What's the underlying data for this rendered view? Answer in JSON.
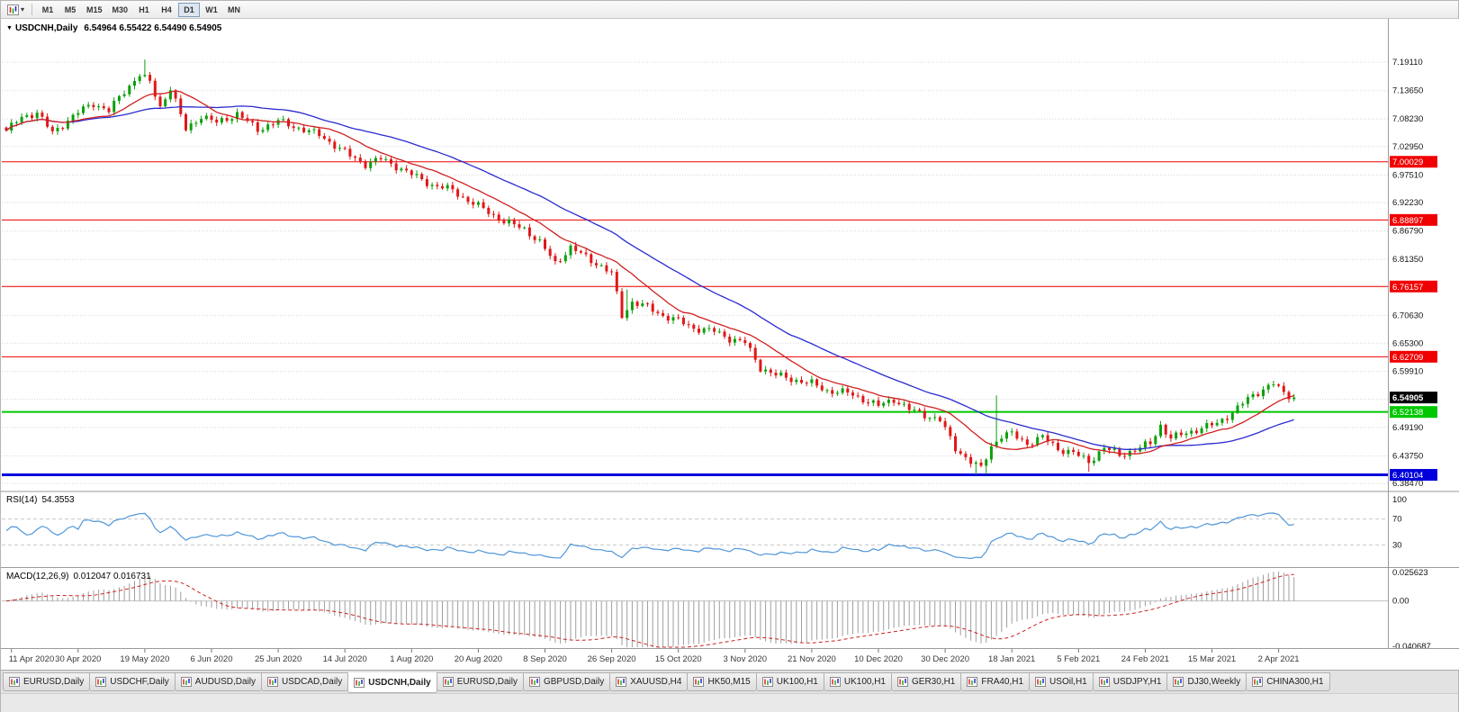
{
  "toolbar": {
    "caret_icon": "▾",
    "timeframes": [
      {
        "label": "M1",
        "active": false
      },
      {
        "label": "M5",
        "active": false
      },
      {
        "label": "M15",
        "active": false
      },
      {
        "label": "M30",
        "active": false
      },
      {
        "label": "H1",
        "active": false
      },
      {
        "label": "H4",
        "active": false
      },
      {
        "label": "D1",
        "active": true
      },
      {
        "label": "W1",
        "active": false
      },
      {
        "label": "MN",
        "active": false
      }
    ]
  },
  "chart_data": {
    "type": "candlestick",
    "symbol": "USDCNH",
    "timeframe": "Daily",
    "title": "USDCNH,Daily",
    "ohlc_label": "6.54964 6.55422 6.54490 6.54905",
    "marker": "▼",
    "bars": 252,
    "price_keypoints": [
      [
        0,
        7.06
      ],
      [
        3,
        7.085
      ],
      [
        6,
        7.095
      ],
      [
        9,
        7.055
      ],
      [
        12,
        7.08
      ],
      [
        14,
        7.095
      ],
      [
        17,
        7.112
      ],
      [
        20,
        7.098
      ],
      [
        23,
        7.135
      ],
      [
        26,
        7.168
      ],
      [
        28,
        7.152
      ],
      [
        30,
        7.105
      ],
      [
        32,
        7.142
      ],
      [
        35,
        7.062
      ],
      [
        38,
        7.088
      ],
      [
        41,
        7.075
      ],
      [
        45,
        7.092
      ],
      [
        49,
        7.062
      ],
      [
        53,
        7.078
      ],
      [
        57,
        7.065
      ],
      [
        61,
        7.052
      ],
      [
        64,
        7.032
      ],
      [
        67,
        7.012
      ],
      [
        70,
        6.996
      ],
      [
        73,
        7.006
      ],
      [
        76,
        6.992
      ],
      [
        79,
        6.976
      ],
      [
        83,
        6.956
      ],
      [
        87,
        6.946
      ],
      [
        90,
        6.926
      ],
      [
        93,
        6.91
      ],
      [
        97,
        6.886
      ],
      [
        101,
        6.872
      ],
      [
        104,
        6.846
      ],
      [
        107,
        6.806
      ],
      [
        110,
        6.836
      ],
      [
        113,
        6.818
      ],
      [
        116,
        6.8
      ],
      [
        118,
        6.786
      ],
      [
        120,
        6.706
      ],
      [
        122,
        6.732
      ],
      [
        125,
        6.722
      ],
      [
        128,
        6.706
      ],
      [
        131,
        6.696
      ],
      [
        134,
        6.682
      ],
      [
        138,
        6.676
      ],
      [
        141,
        6.662
      ],
      [
        144,
        6.654
      ],
      [
        147,
        6.606
      ],
      [
        150,
        6.592
      ],
      [
        154,
        6.582
      ],
      [
        157,
        6.576
      ],
      [
        160,
        6.562
      ],
      [
        164,
        6.558
      ],
      [
        167,
        6.546
      ],
      [
        170,
        6.533
      ],
      [
        173,
        6.546
      ],
      [
        176,
        6.526
      ],
      [
        179,
        6.516
      ],
      [
        182,
        6.506
      ],
      [
        185,
        6.452
      ],
      [
        188,
        6.426
      ],
      [
        190,
        6.413
      ],
      [
        192,
        6.456
      ],
      [
        194,
        6.476
      ],
      [
        196,
        6.479
      ],
      [
        199,
        6.461
      ],
      [
        202,
        6.473
      ],
      [
        205,
        6.451
      ],
      [
        208,
        6.443
      ],
      [
        211,
        6.426
      ],
      [
        214,
        6.453
      ],
      [
        217,
        6.439
      ],
      [
        220,
        6.449
      ],
      [
        223,
        6.461
      ],
      [
        225,
        6.496
      ],
      [
        227,
        6.471
      ],
      [
        230,
        6.481
      ],
      [
        233,
        6.491
      ],
      [
        236,
        6.499
      ],
      [
        239,
        6.521
      ],
      [
        242,
        6.546
      ],
      [
        245,
        6.566
      ],
      [
        247,
        6.576
      ],
      [
        249,
        6.556
      ],
      [
        251,
        6.549
      ]
    ],
    "events": [
      {
        "i": 27,
        "high": 7.196
      },
      {
        "i": 121,
        "high": 6.756
      },
      {
        "i": 189,
        "low": 6.401
      },
      {
        "i": 191,
        "low": 6.402
      },
      {
        "i": 193,
        "high": 6.553
      },
      {
        "i": 211,
        "low": 6.407
      }
    ],
    "grid_labels": [
      "7.19110",
      "7.13650",
      "7.08230",
      "7.02950",
      "6.97510",
      "6.92230",
      "6.86790",
      "6.81350",
      "6.76070",
      "6.70630",
      "6.65300",
      "6.59910",
      "6.49190",
      "6.43750",
      "6.38470"
    ],
    "grid_extra": [
      6.5455
    ],
    "hlines": [
      {
        "value": 7.00029,
        "label": "7.00029",
        "color": "#f00000",
        "width": 1
      },
      {
        "value": 6.88897,
        "label": "6.88897",
        "color": "#f00000",
        "width": 1
      },
      {
        "value": 6.76157,
        "label": "6.76157",
        "color": "#f00000",
        "width": 1
      },
      {
        "value": 6.62709,
        "label": "6.62709",
        "color": "#f00000",
        "width": 1
      },
      {
        "value": 6.52138,
        "label": "6.52138",
        "color": "#00c800",
        "width": 2
      },
      {
        "value": 6.40104,
        "label": "6.40104",
        "color": "#0000dc",
        "width": 3
      }
    ],
    "current_price": {
      "value": 6.54905,
      "label": "6.54905",
      "bg": "#000000",
      "fg": "#ffffff"
    },
    "moving_averages": [
      {
        "period": 13,
        "color": "#d02020"
      },
      {
        "period": 34,
        "color": "#2b2bd0"
      }
    ],
    "candle_colors": {
      "up": "#0ba00b",
      "down": "#e01717"
    },
    "rsi": {
      "label": "RSI(14)",
      "value_label": "54.3553",
      "period": 14,
      "color": "#4f96d8",
      "levels": [
        70,
        30
      ],
      "axis": [
        {
          "label": "100",
          "value": 100
        },
        {
          "label": "70",
          "value": 70
        },
        {
          "label": "30",
          "value": 30
        }
      ]
    },
    "macd": {
      "label": "MACD(12,26,9)",
      "value_label": "0.012047 0.016731",
      "fast": 12,
      "slow": 26,
      "signal": 9,
      "hist_color": "#9e9e9e",
      "signal_color": "#cc2222",
      "axis": [
        {
          "label": "0.025623",
          "value": 0.025623
        },
        {
          "label": "0.00",
          "value": 0
        },
        {
          "label": "-0.040687",
          "value": -0.040687
        }
      ]
    },
    "date_labels": [
      "11 Apr 2020",
      "30 Apr 2020",
      "19 May 2020",
      "6 Jun 2020",
      "25 Jun 2020",
      "14 Jul 2020",
      "1 Aug 2020",
      "20 Aug 2020",
      "8 Sep 2020",
      "26 Sep 2020",
      "15 Oct 2020",
      "3 Nov 2020",
      "21 Nov 2020",
      "10 Dec 2020",
      "30 Dec 2020",
      "18 Jan 2021",
      "5 Feb 2021",
      "24 Feb 2021",
      "15 Mar 2021",
      "2 Apr 2021"
    ],
    "first_label_bar": 1,
    "label_every_bars": 13
  },
  "tabs": [
    {
      "label": "EURUSD,Daily",
      "active": false
    },
    {
      "label": "USDCHF,Daily",
      "active": false
    },
    {
      "label": "AUDUSD,Daily",
      "active": false
    },
    {
      "label": "USDCAD,Daily",
      "active": false
    },
    {
      "label": "USDCNH,Daily",
      "active": true
    },
    {
      "label": "EURUSD,Daily",
      "active": false
    },
    {
      "label": "GBPUSD,Daily",
      "active": false
    },
    {
      "label": "XAUUSD,H4",
      "active": false
    },
    {
      "label": "HK50,M15",
      "active": false
    },
    {
      "label": "UK100,H1",
      "active": false
    },
    {
      "label": "UK100,H1",
      "active": false
    },
    {
      "label": "GER30,H1",
      "active": false
    },
    {
      "label": "FRA40,H1",
      "active": false
    },
    {
      "label": "USOil,H1",
      "active": false
    },
    {
      "label": "USDJPY,H1",
      "active": false
    },
    {
      "label": "DJ30,Weekly",
      "active": false
    },
    {
      "label": "CHINA300,H1",
      "active": false
    }
  ]
}
